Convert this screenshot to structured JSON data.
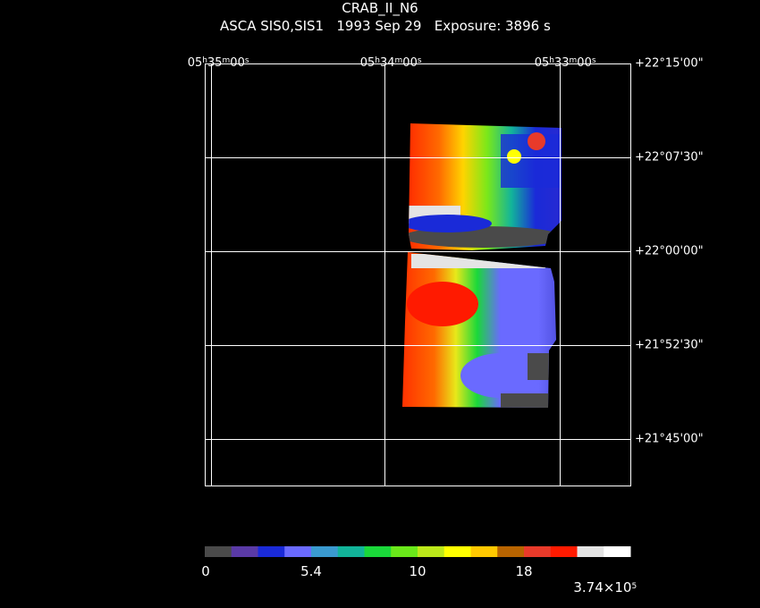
{
  "header": {
    "title": "CRAB_II_N6",
    "subtitle": "ASCA SIS0,SIS1   1993 Sep 29   Exposure: 3896 s"
  },
  "axes": {
    "ra_ticks": [
      {
        "h": "05",
        "m": "35",
        "s": "00"
      },
      {
        "h": "05",
        "m": "34",
        "s": "00"
      },
      {
        "h": "05",
        "m": "33",
        "s": "00"
      }
    ],
    "dec_ticks": [
      "+22°15'00\"",
      "+22°07'30\"",
      "+22°00'00\"",
      "+21°52'30\"",
      "+21°45'00\""
    ]
  },
  "colorbar": {
    "labels": [
      "0",
      "5.4",
      "10",
      "18",
      "3.74×10"
    ],
    "exponent": "5",
    "colors": [
      "#4a4a4a",
      "#5a3aa6",
      "#1a2ad8",
      "#6a6aff",
      "#3a9ad0",
      "#12b49a",
      "#1ad83a",
      "#6ae81a",
      "#bce81a",
      "#ffff00",
      "#ffc800",
      "#b86400",
      "#e83a2a",
      "#ff1a00",
      "#e4e4e4",
      "#ffffff"
    ]
  }
}
